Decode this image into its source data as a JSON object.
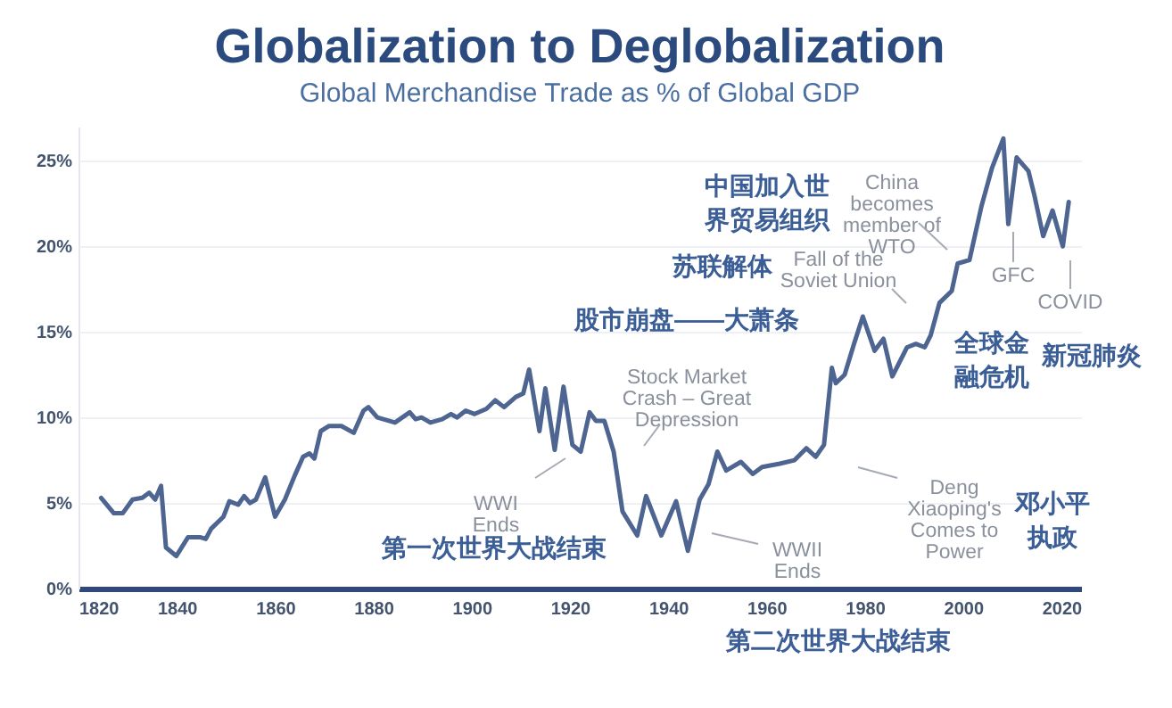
{
  "chart_data": {
    "type": "line",
    "title": "Globalization to Deglobalization",
    "subtitle": "Global Merchandise Trade as % of Global GDP",
    "x": [
      1824.6,
      1827.2,
      1829,
      1831,
      1833,
      1834.4,
      1835.6,
      1836.8,
      1837.8,
      1839.9,
      1842.3,
      1844.7,
      1845.9,
      1847,
      1849.5,
      1850.7,
      1852.5,
      1853.7,
      1854.9,
      1856.1,
      1858,
      1860,
      1862,
      1864,
      1865.7,
      1867,
      1868,
      1869.3,
      1871,
      1873.5,
      1876,
      1878,
      1879,
      1880.8,
      1884.4,
      1887.4,
      1888.6,
      1889.8,
      1891.6,
      1894,
      1895.8,
      1897,
      1898.8,
      1900.6,
      1903,
      1904.8,
      1906.6,
      1909,
      1910.5,
      1911.7,
      1913.8,
      1915,
      1916.9,
      1918.7,
      1920.5,
      1922.2,
      1924,
      1925.3,
      1927,
      1928.9,
      1930.7,
      1933.7,
      1935.5,
      1938.6,
      1941.6,
      1944,
      1946.4,
      1948.2,
      1950,
      1951.8,
      1954.8,
      1957.2,
      1959.1,
      1962.7,
      1965.7,
      1968.1,
      1970,
      1971.7,
      1973.3,
      1974.1,
      1975.9,
      1977.8,
      1979.6,
      1982,
      1983.8,
      1985.6,
      1988.6,
      1990.4,
      1992.2,
      1993.4,
      1995.2,
      1997.7,
      1998.9,
      2001.3,
      2003.7,
      2005.9,
      2008.2,
      2009.2,
      2010.9,
      2013.3,
      2014.5,
      2016.3,
      2018.2,
      2020.3,
      2021.5
    ],
    "series": [
      {
        "color": "#4d6590",
        "values": [
          5.3,
          4.4,
          4.4,
          5.2,
          5.3,
          5.6,
          5.2,
          6.0,
          2.4,
          1.9,
          3.0,
          3.0,
          2.9,
          3.5,
          4.2,
          5.1,
          4.9,
          5.4,
          5.0,
          5.2,
          6.5,
          4.2,
          5.2,
          6.6,
          7.7,
          7.9,
          7.6,
          9.2,
          9.5,
          9.5,
          9.1,
          10.4,
          10.6,
          10.0,
          9.7,
          10.3,
          9.9,
          10.0,
          9.7,
          9.9,
          10.2,
          10.0,
          10.4,
          10.2,
          10.5,
          11.0,
          10.6,
          11.2,
          11.4,
          12.8,
          9.2,
          11.7,
          8.1,
          11.8,
          8.4,
          8.0,
          10.3,
          9.8,
          9.8,
          8.0,
          4.5,
          3.1,
          5.4,
          3.1,
          5.1,
          2.2,
          5.2,
          6.1,
          8.0,
          6.9,
          7.4,
          6.7,
          7.1,
          7.3,
          7.5,
          8.2,
          7.7,
          8.4,
          12.9,
          12.0,
          12.5,
          14.3,
          15.9,
          13.9,
          14.6,
          12.4,
          14.1,
          14.3,
          14.1,
          14.8,
          16.7,
          17.4,
          19.0,
          19.2,
          22.3,
          24.6,
          26.3,
          21.3,
          25.2,
          24.4,
          23.0,
          20.6,
          22.1,
          20.0,
          22.6
        ]
      }
    ],
    "xlim": [
      1820,
      2024
    ],
    "xticks": [
      1820,
      1840,
      1860,
      1880,
      1900,
      1920,
      1940,
      1960,
      1980,
      2000,
      2020
    ],
    "ylim": [
      0,
      27
    ],
    "yticks": [
      {
        "value": 0,
        "label": "0%"
      },
      {
        "value": 5,
        "label": "5%"
      },
      {
        "value": 10,
        "label": "10%"
      },
      {
        "value": 15,
        "label": "15%"
      },
      {
        "value": 20,
        "label": "20%"
      },
      {
        "value": 25,
        "label": "25%"
      }
    ],
    "grid": "y",
    "annotations": [
      "WWI\nEnds",
      "第一次世界大战结束",
      "Stock Market\nCrash – Great\nDepression",
      "股市崩盘——大萧条",
      "WWII\nEnds",
      "第二次世界大战结束",
      "Deng\nXiaoping's\nComes to\nPower",
      "邓小平执政",
      "Fall of the\nSoviet Union",
      "苏联解体",
      "China\nbecomes\nmember of\nWTO",
      "中国加入世界贸易组织",
      "GFC",
      "全球金融危机",
      "COVID",
      "新冠肺炎"
    ]
  }
}
